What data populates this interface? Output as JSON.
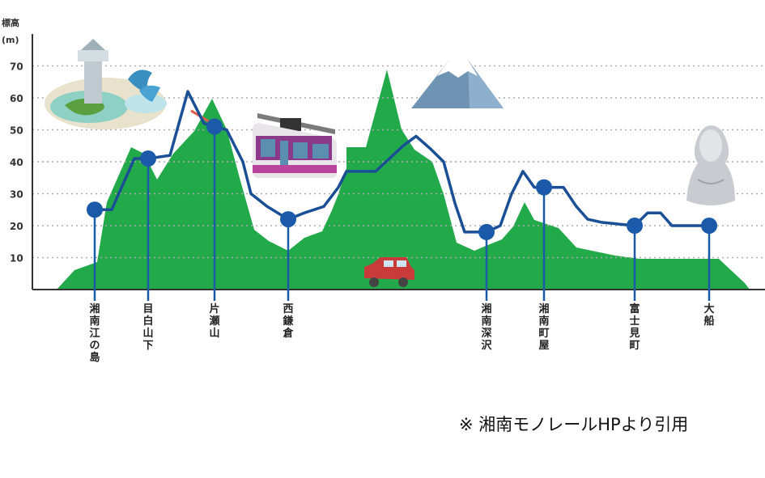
{
  "chart_data": {
    "type": "line",
    "title": "",
    "ylabel": "標高",
    "ylabel_unit": "(m)",
    "ylim": [
      0,
      80
    ],
    "yticks": [
      10,
      20,
      30,
      40,
      50,
      60,
      70
    ],
    "grid": true,
    "stations": [
      {
        "name": "湘南江の島",
        "elev": 25
      },
      {
        "name": "目白山下",
        "elev": 41
      },
      {
        "name": "片瀬山",
        "elev": 51
      },
      {
        "name": "西鎌倉",
        "elev": 22
      },
      {
        "name": "湘南深沢",
        "elev": 18
      },
      {
        "name": "湘南町屋",
        "elev": 32
      },
      {
        "name": "富士見町",
        "elev": 20
      },
      {
        "name": "大船",
        "elev": 20
      }
    ],
    "colors": {
      "terrain": "#22aa4a",
      "rail": "#1a4f95",
      "road": "#e05a4a",
      "station": "#1a5aa8",
      "grid": "#aaaaaa"
    }
  },
  "note": "※ 湘南モノレールHPより引用"
}
